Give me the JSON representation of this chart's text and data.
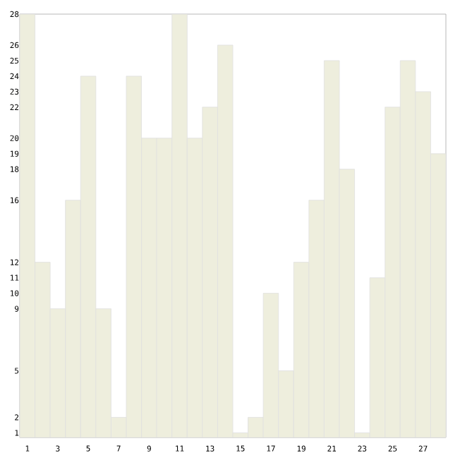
{
  "chart_data": {
    "type": "bar",
    "categories": [
      "1",
      null,
      "3",
      null,
      "5",
      null,
      "7",
      null,
      "9",
      null,
      "11",
      null,
      "13",
      null,
      "15",
      null,
      "17",
      null,
      "19",
      null,
      "21",
      null,
      "23",
      null,
      "25",
      null,
      "27",
      null
    ],
    "values": [
      28,
      12,
      9,
      16,
      24,
      9,
      2,
      24,
      20,
      20,
      28,
      20,
      22,
      26,
      1,
      2,
      10,
      5,
      12,
      16,
      25,
      18,
      1,
      11,
      22,
      25,
      23,
      19
    ],
    "color": "#eeeedd",
    "ylim": [
      0.7,
      28
    ],
    "yticks": [
      1,
      2,
      5,
      9,
      10,
      11,
      12,
      16,
      18,
      19,
      20,
      22,
      23,
      24,
      25,
      26,
      28
    ],
    "grid": false
  }
}
